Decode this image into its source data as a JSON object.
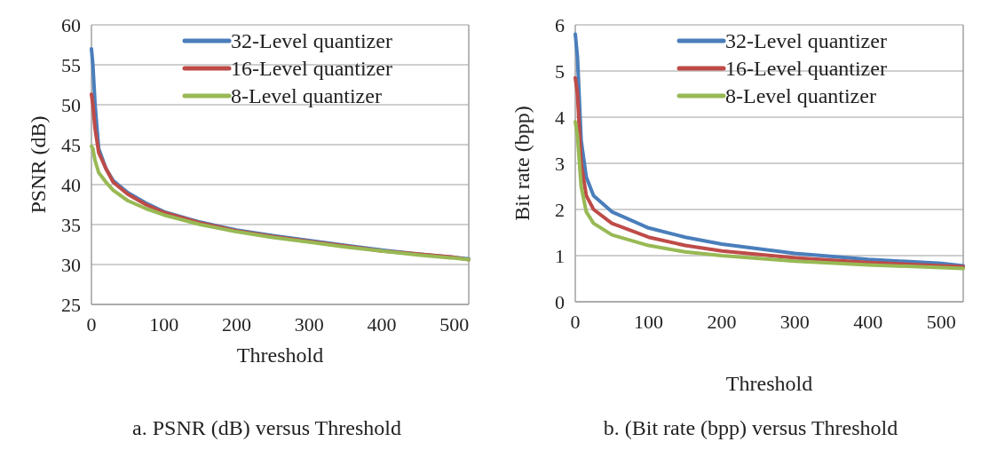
{
  "chart_data": [
    {
      "type": "line",
      "title": "a. PSNR (dB) versus Threshold",
      "xlabel": "Threshold",
      "ylabel": "PSNR (dB)",
      "x": [
        0,
        2,
        5,
        10,
        20,
        30,
        50,
        75,
        100,
        150,
        200,
        250,
        300,
        350,
        400,
        450,
        500,
        520
      ],
      "xlim": [
        0,
        520
      ],
      "xticks": [
        0,
        100,
        200,
        300,
        400,
        500
      ],
      "ylim": [
        25,
        60
      ],
      "yticks": [
        25,
        30,
        35,
        40,
        45,
        50,
        55,
        60
      ],
      "grid": "y",
      "legend": "top right",
      "line_style": "solid",
      "marker": "none",
      "series": [
        {
          "name": "32-Level quantizer",
          "color": "#4a7ebb",
          "values": [
            57,
            55,
            50,
            44.5,
            42,
            40.5,
            39,
            37.7,
            36.6,
            35.3,
            34.3,
            33.6,
            33,
            32.4,
            31.8,
            31.3,
            30.9,
            30.7
          ]
        },
        {
          "name": "16-Level quantizer",
          "color": "#be4b48",
          "values": [
            51.3,
            50,
            47,
            44,
            42,
            40.3,
            38.8,
            37.5,
            36.5,
            35.2,
            34.2,
            33.5,
            32.9,
            32.3,
            31.7,
            31.3,
            30.9,
            30.6
          ]
        },
        {
          "name": "8-Level quantizer",
          "color": "#98b954",
          "values": [
            44.8,
            44.5,
            43,
            41.5,
            40.3,
            39.3,
            38,
            37,
            36.2,
            35,
            34.1,
            33.4,
            32.8,
            32.2,
            31.7,
            31.2,
            30.8,
            30.6
          ]
        }
      ]
    },
    {
      "type": "line",
      "title": "b. (Bit rate (bpp) versus Threshold",
      "xlabel": "Threshold",
      "ylabel": "Bit rate (bpp)",
      "x": [
        0,
        3,
        8,
        15,
        25,
        50,
        100,
        150,
        200,
        300,
        400,
        500,
        530
      ],
      "xlim": [
        0,
        530
      ],
      "xticks": [
        0,
        100,
        200,
        300,
        400,
        500
      ],
      "ylim": [
        0,
        6
      ],
      "yticks": [
        0,
        1,
        2,
        3,
        4,
        5,
        6
      ],
      "grid": "y",
      "legend": "top right",
      "line_style": "solid",
      "marker": "none",
      "series": [
        {
          "name": "32-Level quantizer",
          "color": "#4a7ebb",
          "values": [
            5.8,
            5.3,
            3.5,
            2.7,
            2.3,
            1.95,
            1.6,
            1.4,
            1.25,
            1.05,
            0.92,
            0.83,
            0.78
          ]
        },
        {
          "name": "16-Level quantizer",
          "color": "#be4b48",
          "values": [
            4.85,
            4.5,
            3.0,
            2.3,
            2.0,
            1.7,
            1.4,
            1.22,
            1.1,
            0.95,
            0.85,
            0.78,
            0.76
          ]
        },
        {
          "name": "8-Level quantizer",
          "color": "#98b954",
          "values": [
            3.9,
            3.6,
            2.5,
            1.95,
            1.7,
            1.45,
            1.22,
            1.08,
            1.0,
            0.88,
            0.8,
            0.74,
            0.72
          ]
        }
      ]
    }
  ]
}
